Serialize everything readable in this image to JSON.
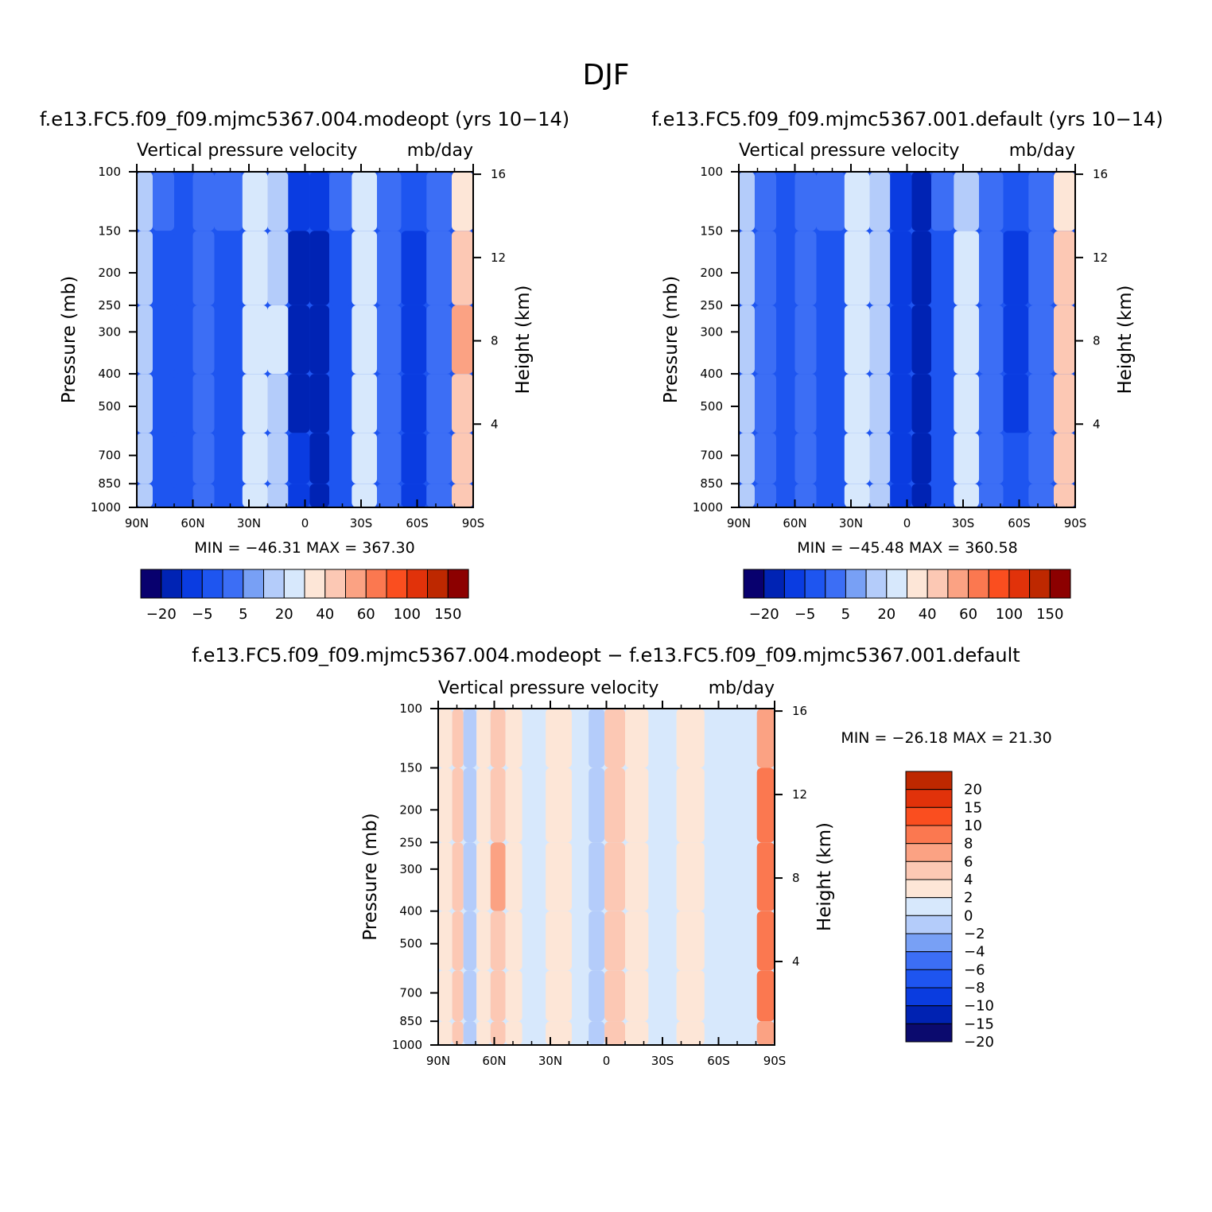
{
  "figure": {
    "title": "DJF"
  },
  "chart_data": [
    {
      "type": "heatmap",
      "id": "top-left",
      "title": "f.e13.FC5.f09_f09.mjmc5367.004.modeopt (yrs 10−14)",
      "subtitle_left": "Vertical pressure velocity",
      "subtitle_right": "mb/day",
      "xlabel": "",
      "ylabel": "Pressure (mb)",
      "ylabel_right": "Height (km)",
      "x_ticks": [
        "90N",
        "60N",
        "30N",
        "0",
        "30S",
        "60S",
        "90S"
      ],
      "x_tick_values": [
        90,
        60,
        30,
        0,
        -30,
        -60,
        -90
      ],
      "y_ticks": [
        "100",
        "150",
        "200",
        "250",
        "300",
        "400",
        "500",
        "700",
        "850",
        "1000"
      ],
      "y_tick_values": [
        100,
        150,
        200,
        250,
        300,
        400,
        500,
        700,
        850,
        1000
      ],
      "y_scale": "log",
      "height_ticks": [
        "16",
        "12",
        "8",
        "4"
      ],
      "height_tick_values": [
        16,
        12,
        8,
        4
      ],
      "xlim": [
        90,
        -90
      ],
      "ylim": [
        100,
        1000
      ],
      "stats": "MIN = −46.31   MAX = 367.30",
      "min": -46.31,
      "max": 367.3,
      "levels": [
        -30,
        -20,
        -10,
        -5,
        0,
        5,
        10,
        20,
        30,
        40,
        50,
        60,
        80,
        100,
        120,
        150
      ],
      "colorbar_labels": [
        "−20",
        "−5",
        "5",
        "20",
        "40",
        "60",
        "100",
        "150"
      ],
      "colorbar_orientation": "horizontal",
      "bands": [
        {
          "lat": 88,
          "omega": 8
        },
        {
          "lat": 75,
          "omega": -6
        },
        {
          "lat": 65,
          "omega": -9
        },
        {
          "lat": 55,
          "omega": -4
        },
        {
          "lat": 42,
          "omega": -6
        },
        {
          "lat": 25,
          "omega": 18
        },
        {
          "lat": 15,
          "omega": 10
        },
        {
          "lat": 3,
          "omega": -22
        },
        {
          "lat": -8,
          "omega": -28
        },
        {
          "lat": -18,
          "omega": -6
        },
        {
          "lat": -32,
          "omega": 15
        },
        {
          "lat": -45,
          "omega": -2
        },
        {
          "lat": -58,
          "omega": -12
        },
        {
          "lat": -72,
          "omega": -3
        },
        {
          "lat": -85,
          "omega": 40
        }
      ]
    },
    {
      "type": "heatmap",
      "id": "top-right",
      "title": "f.e13.FC5.f09_f09.mjmc5367.001.default (yrs 10−14)",
      "subtitle_left": "Vertical pressure velocity",
      "subtitle_right": "mb/day",
      "xlabel": "",
      "ylabel": "Pressure (mb)",
      "ylabel_right": "Height (km)",
      "x_ticks": [
        "90N",
        "60N",
        "30N",
        "0",
        "30S",
        "60S",
        "90S"
      ],
      "x_tick_values": [
        90,
        60,
        30,
        0,
        -30,
        -60,
        -90
      ],
      "y_ticks": [
        "100",
        "150",
        "200",
        "250",
        "300",
        "400",
        "500",
        "700",
        "850",
        "1000"
      ],
      "y_tick_values": [
        100,
        150,
        200,
        250,
        300,
        400,
        500,
        700,
        850,
        1000
      ],
      "y_scale": "log",
      "height_ticks": [
        "16",
        "12",
        "8",
        "4"
      ],
      "height_tick_values": [
        16,
        12,
        8,
        4
      ],
      "xlim": [
        90,
        -90
      ],
      "ylim": [
        100,
        1000
      ],
      "stats": "MIN = −45.48   MAX = 360.58",
      "min": -45.48,
      "max": 360.58,
      "levels": [
        -30,
        -20,
        -10,
        -5,
        0,
        5,
        10,
        20,
        30,
        40,
        50,
        60,
        80,
        100,
        120,
        150
      ],
      "colorbar_labels": [
        "−20",
        "−5",
        "5",
        "20",
        "40",
        "60",
        "100",
        "150"
      ],
      "colorbar_orientation": "horizontal",
      "bands": [
        {
          "lat": 88,
          "omega": 8
        },
        {
          "lat": 75,
          "omega": -5
        },
        {
          "lat": 65,
          "omega": -10
        },
        {
          "lat": 55,
          "omega": -4
        },
        {
          "lat": 42,
          "omega": -7
        },
        {
          "lat": 25,
          "omega": 17
        },
        {
          "lat": 15,
          "omega": 9
        },
        {
          "lat": 3,
          "omega": -20
        },
        {
          "lat": -8,
          "omega": -30
        },
        {
          "lat": -18,
          "omega": -6
        },
        {
          "lat": -32,
          "omega": 14
        },
        {
          "lat": -45,
          "omega": -2
        },
        {
          "lat": -58,
          "omega": -11
        },
        {
          "lat": -72,
          "omega": -3
        },
        {
          "lat": -85,
          "omega": 38
        }
      ]
    },
    {
      "type": "heatmap",
      "id": "bottom-diff",
      "title": "f.e13.FC5.f09_f09.mjmc5367.004.modeopt − f.e13.FC5.f09_f09.mjmc5367.001.default",
      "subtitle_left": "Vertical pressure velocity",
      "subtitle_right": "mb/day",
      "xlabel": "",
      "ylabel": "Pressure (mb)",
      "ylabel_right": "Height (km)",
      "x_ticks": [
        "90N",
        "60N",
        "30N",
        "0",
        "30S",
        "60S",
        "90S"
      ],
      "x_tick_values": [
        90,
        60,
        30,
        0,
        -30,
        -60,
        -90
      ],
      "y_ticks": [
        "100",
        "150",
        "200",
        "250",
        "300",
        "400",
        "500",
        "700",
        "850",
        "1000"
      ],
      "y_tick_values": [
        100,
        150,
        200,
        250,
        300,
        400,
        500,
        700,
        850,
        1000
      ],
      "y_scale": "log",
      "height_ticks": [
        "16",
        "12",
        "8",
        "4"
      ],
      "height_tick_values": [
        16,
        12,
        8,
        4
      ],
      "xlim": [
        90,
        -90
      ],
      "ylim": [
        100,
        1000
      ],
      "stats": "MIN = −26.18   MAX =  21.30",
      "min": -26.18,
      "max": 21.3,
      "levels": [
        -20,
        -15,
        -10,
        -8,
        -6,
        -4,
        -2,
        0,
        2,
        4,
        6,
        8,
        10,
        15,
        20
      ],
      "colorbar_labels": [
        "20",
        "15",
        "10",
        "8",
        "6",
        "4",
        "2",
        "0",
        "−2",
        "−4",
        "−6",
        "−8",
        "−10",
        "−15",
        "−20"
      ],
      "colorbar_orientation": "vertical",
      "bands": [
        {
          "lat": 85,
          "omega": 1
        },
        {
          "lat": 80,
          "omega": 3
        },
        {
          "lat": 73,
          "omega": -3
        },
        {
          "lat": 66,
          "omega": 1
        },
        {
          "lat": 58,
          "omega": 4
        },
        {
          "lat": 50,
          "omega": 1
        },
        {
          "lat": 40,
          "omega": -1
        },
        {
          "lat": 25,
          "omega": 1
        },
        {
          "lat": 12,
          "omega": -1
        },
        {
          "lat": 7,
          "omega": -3
        },
        {
          "lat": -5,
          "omega": 3
        },
        {
          "lat": -15,
          "omega": 1
        },
        {
          "lat": -30,
          "omega": -1
        },
        {
          "lat": -45,
          "omega": 1
        },
        {
          "lat": -60,
          "omega": -1
        },
        {
          "lat": -75,
          "omega": -1
        },
        {
          "lat": -86,
          "omega": 7
        }
      ]
    }
  ],
  "colors": {
    "scale16": [
      "#08006e",
      "#0023b4",
      "#0a3ce1",
      "#1e55f0",
      "#3c6ef5",
      "#78a0f5",
      "#b4ccfa",
      "#d7e8fc",
      "#fde6d7",
      "#fcc8b4",
      "#fba283",
      "#fb7850",
      "#fa4e1f",
      "#e1320a",
      "#be2800",
      "#8c0000"
    ],
    "scale14": [
      "#0b0a6e",
      "#0022b2",
      "#0a3ce0",
      "#1e55f0",
      "#3c6ef5",
      "#78a0f5",
      "#b4ccfa",
      "#d7e8fc",
      "#fde6d7",
      "#fcc8b4",
      "#fba283",
      "#fb7850",
      "#fa4e1f",
      "#e1320a",
      "#be2800",
      "#8c0000"
    ]
  }
}
